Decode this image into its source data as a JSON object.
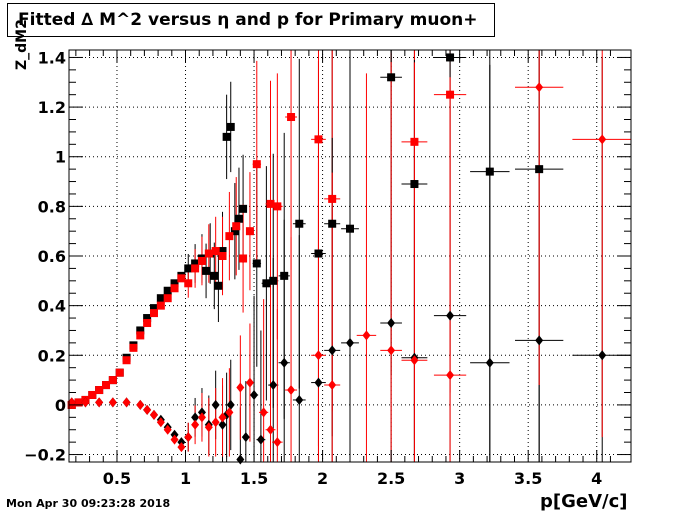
{
  "title": "Fitted ∆ M^2 versus η and p for Primary muon+",
  "footer": "Mon Apr 30 09:23:28 2018",
  "colors": {
    "black": "#000000",
    "red": "#ff0000",
    "grid": "#000000"
  },
  "chart_data": {
    "type": "scatter",
    "title": "Fitted ∆ M^2 versus η and p for Primary muon+",
    "xlabel": "p[GeV/c]",
    "ylabel": "Z_dM2",
    "xlim": [
      0.15,
      4.25
    ],
    "ylim": [
      -0.23,
      1.43
    ],
    "grid": true,
    "xticks": [
      0.5,
      1,
      1.5,
      2,
      2.5,
      3,
      3.5,
      4
    ],
    "xtick_labels": [
      "0.5",
      "1",
      "1.5",
      "2",
      "2.5",
      "3",
      "3.5",
      "4"
    ],
    "yticks": [
      -0.2,
      0,
      0.2,
      0.4,
      0.6,
      0.8,
      1,
      1.2,
      1.4
    ],
    "ytick_labels": [
      "−0.2",
      "0",
      "0.2",
      "0.4",
      "0.6",
      "0.8",
      "1",
      "1.2",
      "1.4"
    ],
    "series": [
      {
        "color": "#000000",
        "marker": "square",
        "points": [
          {
            "x": 0.17,
            "y": 0.0
          },
          {
            "x": 0.22,
            "y": 0.01
          },
          {
            "x": 0.27,
            "y": 0.02
          },
          {
            "x": 0.32,
            "y": 0.04
          },
          {
            "x": 0.37,
            "y": 0.06
          },
          {
            "x": 0.42,
            "y": 0.08
          },
          {
            "x": 0.47,
            "y": 0.1
          },
          {
            "x": 0.52,
            "y": 0.13
          },
          {
            "x": 0.57,
            "y": 0.19
          },
          {
            "x": 0.62,
            "y": 0.24
          },
          {
            "x": 0.67,
            "y": 0.3
          },
          {
            "x": 0.72,
            "y": 0.35
          },
          {
            "x": 0.77,
            "y": 0.39
          },
          {
            "x": 0.82,
            "y": 0.43
          },
          {
            "x": 0.87,
            "y": 0.46
          },
          {
            "x": 0.92,
            "y": 0.49
          },
          {
            "x": 0.97,
            "y": 0.52
          },
          {
            "x": 1.02,
            "y": 0.55
          },
          {
            "x": 1.07,
            "y": 0.57
          },
          {
            "x": 1.12,
            "y": 0.59
          },
          {
            "x": 1.15,
            "y": 0.54
          },
          {
            "x": 1.18,
            "y": 0.61
          },
          {
            "x": 1.21,
            "y": 0.52
          },
          {
            "x": 1.24,
            "y": 0.48
          },
          {
            "x": 1.27,
            "y": 0.62
          },
          {
            "x": 1.3,
            "y": 1.08
          },
          {
            "x": 1.33,
            "y": 1.12
          },
          {
            "x": 1.36,
            "y": 0.7
          },
          {
            "x": 1.39,
            "y": 0.75
          },
          {
            "x": 1.42,
            "y": 0.79
          },
          {
            "x": 1.52,
            "y": 0.57
          },
          {
            "x": 1.59,
            "y": 0.49
          },
          {
            "x": 1.64,
            "y": 0.5
          },
          {
            "x": 1.72,
            "y": 0.52
          },
          {
            "x": 1.83,
            "y": 0.73
          },
          {
            "x": 1.97,
            "y": 0.61
          },
          {
            "x": 2.07,
            "y": 0.73
          },
          {
            "x": 2.2,
            "y": 0.71
          },
          {
            "x": 2.5,
            "y": 1.32
          },
          {
            "x": 2.67,
            "y": 0.89
          },
          {
            "x": 2.93,
            "y": 1.4
          },
          {
            "x": 3.22,
            "y": 0.94
          },
          {
            "x": 3.58,
            "y": 0.95
          }
        ]
      },
      {
        "color": "#ff0000",
        "marker": "square",
        "points": [
          {
            "x": 0.17,
            "y": 0.0
          },
          {
            "x": 0.22,
            "y": 0.01
          },
          {
            "x": 0.27,
            "y": 0.02
          },
          {
            "x": 0.32,
            "y": 0.04
          },
          {
            "x": 0.37,
            "y": 0.06
          },
          {
            "x": 0.42,
            "y": 0.08
          },
          {
            "x": 0.47,
            "y": 0.1
          },
          {
            "x": 0.52,
            "y": 0.13
          },
          {
            "x": 0.57,
            "y": 0.18
          },
          {
            "x": 0.62,
            "y": 0.23
          },
          {
            "x": 0.67,
            "y": 0.28
          },
          {
            "x": 0.72,
            "y": 0.33
          },
          {
            "x": 0.77,
            "y": 0.37
          },
          {
            "x": 0.82,
            "y": 0.4
          },
          {
            "x": 0.87,
            "y": 0.43
          },
          {
            "x": 0.92,
            "y": 0.47
          },
          {
            "x": 0.97,
            "y": 0.51
          },
          {
            "x": 1.02,
            "y": 0.49
          },
          {
            "x": 1.07,
            "y": 0.55
          },
          {
            "x": 1.12,
            "y": 0.58
          },
          {
            "x": 1.17,
            "y": 0.61
          },
          {
            "x": 1.22,
            "y": 0.62
          },
          {
            "x": 1.27,
            "y": 0.6
          },
          {
            "x": 1.32,
            "y": 0.68
          },
          {
            "x": 1.37,
            "y": 0.72
          },
          {
            "x": 1.42,
            "y": 0.59
          },
          {
            "x": 1.47,
            "y": 0.7
          },
          {
            "x": 1.52,
            "y": 0.97
          },
          {
            "x": 1.62,
            "y": 0.81
          },
          {
            "x": 1.67,
            "y": 0.8
          },
          {
            "x": 1.77,
            "y": 1.16
          },
          {
            "x": 1.97,
            "y": 1.07
          },
          {
            "x": 2.07,
            "y": 0.83
          },
          {
            "x": 2.67,
            "y": 1.06
          },
          {
            "x": 2.93,
            "y": 1.25
          }
        ]
      },
      {
        "color": "#000000",
        "marker": "diamond",
        "points": [
          {
            "x": 0.17,
            "y": 0.01
          },
          {
            "x": 0.27,
            "y": 0.01
          },
          {
            "x": 0.37,
            "y": 0.01
          },
          {
            "x": 0.47,
            "y": 0.01
          },
          {
            "x": 0.57,
            "y": 0.01
          },
          {
            "x": 0.67,
            "y": 0.0
          },
          {
            "x": 0.72,
            "y": -0.02
          },
          {
            "x": 0.77,
            "y": -0.04
          },
          {
            "x": 0.82,
            "y": -0.06
          },
          {
            "x": 0.87,
            "y": -0.09
          },
          {
            "x": 0.92,
            "y": -0.12
          },
          {
            "x": 0.97,
            "y": -0.15
          },
          {
            "x": 1.02,
            "y": -0.13
          },
          {
            "x": 1.07,
            "y": -0.05
          },
          {
            "x": 1.12,
            "y": -0.03
          },
          {
            "x": 1.17,
            "y": -0.08
          },
          {
            "x": 1.22,
            "y": 0.0
          },
          {
            "x": 1.27,
            "y": -0.08
          },
          {
            "x": 1.3,
            "y": -0.04
          },
          {
            "x": 1.33,
            "y": 0.0
          },
          {
            "x": 1.4,
            "y": -0.22
          },
          {
            "x": 1.44,
            "y": -0.13
          },
          {
            "x": 1.5,
            "y": 0.04
          },
          {
            "x": 1.55,
            "y": -0.14
          },
          {
            "x": 1.64,
            "y": 0.08
          },
          {
            "x": 1.72,
            "y": 0.17
          },
          {
            "x": 1.83,
            "y": 0.02
          },
          {
            "x": 1.97,
            "y": 0.09
          },
          {
            "x": 2.07,
            "y": 0.22
          },
          {
            "x": 2.2,
            "y": 0.25
          },
          {
            "x": 2.5,
            "y": 0.33
          },
          {
            "x": 2.67,
            "y": 0.19
          },
          {
            "x": 2.93,
            "y": 0.36
          },
          {
            "x": 3.22,
            "y": 0.17
          },
          {
            "x": 3.58,
            "y": 0.26
          },
          {
            "x": 4.04,
            "y": 0.2
          }
        ]
      },
      {
        "color": "#ff0000",
        "marker": "diamond",
        "points": [
          {
            "x": 0.17,
            "y": 0.01
          },
          {
            "x": 0.27,
            "y": 0.01
          },
          {
            "x": 0.37,
            "y": 0.01
          },
          {
            "x": 0.47,
            "y": 0.01
          },
          {
            "x": 0.57,
            "y": 0.01
          },
          {
            "x": 0.67,
            "y": 0.0
          },
          {
            "x": 0.72,
            "y": -0.02
          },
          {
            "x": 0.77,
            "y": -0.04
          },
          {
            "x": 0.82,
            "y": -0.07
          },
          {
            "x": 0.87,
            "y": -0.1
          },
          {
            "x": 0.92,
            "y": -0.14
          },
          {
            "x": 0.97,
            "y": -0.17
          },
          {
            "x": 1.02,
            "y": -0.13
          },
          {
            "x": 1.07,
            "y": -0.08
          },
          {
            "x": 1.12,
            "y": -0.05
          },
          {
            "x": 1.17,
            "y": -0.09
          },
          {
            "x": 1.22,
            "y": -0.07
          },
          {
            "x": 1.27,
            "y": -0.05
          },
          {
            "x": 1.32,
            "y": -0.03
          },
          {
            "x": 1.4,
            "y": 0.07
          },
          {
            "x": 1.47,
            "y": 0.09
          },
          {
            "x": 1.57,
            "y": -0.03
          },
          {
            "x": 1.62,
            "y": -0.1
          },
          {
            "x": 1.67,
            "y": -0.15
          },
          {
            "x": 1.77,
            "y": 0.06
          },
          {
            "x": 1.97,
            "y": 0.2
          },
          {
            "x": 2.07,
            "y": 0.08
          },
          {
            "x": 2.32,
            "y": 0.28
          },
          {
            "x": 2.5,
            "y": 0.22
          },
          {
            "x": 2.67,
            "y": 0.18
          },
          {
            "x": 2.93,
            "y": 0.12
          },
          {
            "x": 3.58,
            "y": 1.28
          },
          {
            "x": 4.04,
            "y": 1.07
          }
        ]
      }
    ]
  }
}
